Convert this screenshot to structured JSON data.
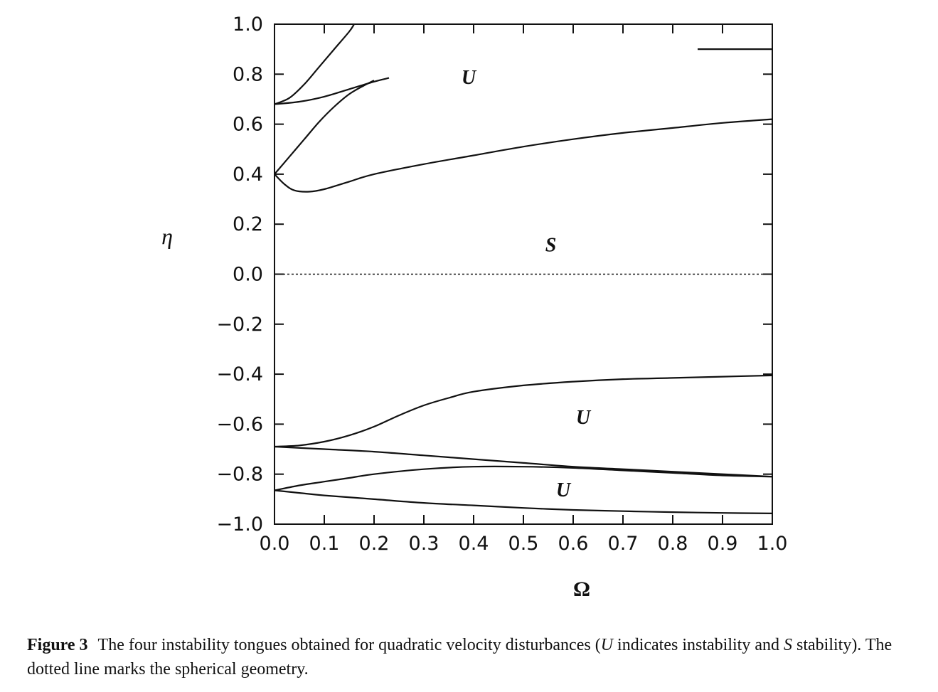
{
  "chart_data": {
    "type": "line",
    "xlabel": "Ω",
    "ylabel": "η",
    "xlim": [
      0.0,
      1.0
    ],
    "ylim": [
      -1.0,
      1.0
    ],
    "xticks": [
      "0.0",
      "0.1",
      "0.2",
      "0.3",
      "0.4",
      "0.5",
      "0.6",
      "0.7",
      "0.8",
      "0.9",
      "1.0"
    ],
    "yticks": [
      "1.0",
      "0.8",
      "0.6",
      "0.4",
      "0.2",
      "0.0",
      "−0.2",
      "−0.4",
      "−0.6",
      "−0.8",
      "−1.0"
    ],
    "grid": false,
    "series": [
      {
        "style": "solid",
        "x": [
          0.0,
          0.03,
          0.06,
          0.09,
          0.12,
          0.15,
          0.16
        ],
        "y": [
          0.68,
          0.705,
          0.76,
          0.83,
          0.9,
          0.97,
          1.0
        ]
      },
      {
        "style": "solid",
        "x": [
          0.0,
          0.05,
          0.1,
          0.15,
          0.2,
          0.23
        ],
        "y": [
          0.68,
          0.69,
          0.71,
          0.74,
          0.77,
          0.785
        ]
      },
      {
        "style": "solid",
        "x": [
          0.0,
          0.03,
          0.06,
          0.09,
          0.12,
          0.15,
          0.18,
          0.2
        ],
        "y": [
          0.4,
          0.47,
          0.54,
          0.61,
          0.67,
          0.72,
          0.755,
          0.775
        ]
      },
      {
        "style": "solid",
        "x": [
          0.0,
          0.02,
          0.04,
          0.07,
          0.1,
          0.15,
          0.2,
          0.3,
          0.4,
          0.5,
          0.6,
          0.7,
          0.8,
          0.9,
          1.0
        ],
        "y": [
          0.4,
          0.36,
          0.335,
          0.33,
          0.34,
          0.37,
          0.4,
          0.44,
          0.475,
          0.51,
          0.54,
          0.565,
          0.585,
          0.605,
          0.62
        ]
      },
      {
        "style": "solid",
        "x": [
          0.85,
          1.0
        ],
        "y": [
          0.9,
          0.9
        ]
      },
      {
        "style": "dotted",
        "x": [
          0.0,
          1.0
        ],
        "y": [
          0.0,
          0.0
        ]
      },
      {
        "style": "solid",
        "x": [
          0.0,
          0.05,
          0.1,
          0.15,
          0.2,
          0.25,
          0.3,
          0.35,
          0.4,
          0.5,
          0.6,
          0.7,
          0.8,
          0.9,
          1.0
        ],
        "y": [
          -0.69,
          -0.685,
          -0.67,
          -0.645,
          -0.61,
          -0.565,
          -0.525,
          -0.495,
          -0.47,
          -0.445,
          -0.43,
          -0.42,
          -0.415,
          -0.41,
          -0.405
        ]
      },
      {
        "style": "solid",
        "x": [
          0.0,
          0.1,
          0.2,
          0.3,
          0.4,
          0.5,
          0.6,
          0.7,
          0.8,
          0.9,
          1.0
        ],
        "y": [
          -0.69,
          -0.7,
          -0.71,
          -0.725,
          -0.74,
          -0.755,
          -0.77,
          -0.78,
          -0.79,
          -0.8,
          -0.81
        ]
      },
      {
        "style": "solid",
        "x": [
          0.0,
          0.05,
          0.1,
          0.15,
          0.2,
          0.3,
          0.4,
          0.5,
          0.6,
          0.7,
          0.8,
          0.9,
          1.0
        ],
        "y": [
          -0.865,
          -0.845,
          -0.83,
          -0.815,
          -0.8,
          -0.78,
          -0.77,
          -0.77,
          -0.775,
          -0.785,
          -0.795,
          -0.805,
          -0.81
        ]
      },
      {
        "style": "solid",
        "x": [
          0.0,
          0.05,
          0.1,
          0.2,
          0.3,
          0.4,
          0.5,
          0.6,
          0.7,
          0.8,
          0.9,
          1.0
        ],
        "y": [
          -0.865,
          -0.875,
          -0.885,
          -0.9,
          -0.915,
          -0.925,
          -0.935,
          -0.943,
          -0.948,
          -0.952,
          -0.955,
          -0.957
        ]
      }
    ],
    "annotations": [
      {
        "text": "U",
        "x": 0.39,
        "y": 0.79
      },
      {
        "text": "S",
        "x": 0.555,
        "y": 0.12
      },
      {
        "text": "U",
        "x": 0.62,
        "y": -0.57
      },
      {
        "text": "U",
        "x": 0.58,
        "y": -0.86
      }
    ]
  },
  "caption": {
    "label": "Figure 3",
    "part1": "The four instability tongues obtained for quadratic velocity disturbances (",
    "u": "U",
    "part2": " indicates instability and ",
    "s": "S",
    "part3": " stability). The dotted line marks the spherical geometry."
  }
}
